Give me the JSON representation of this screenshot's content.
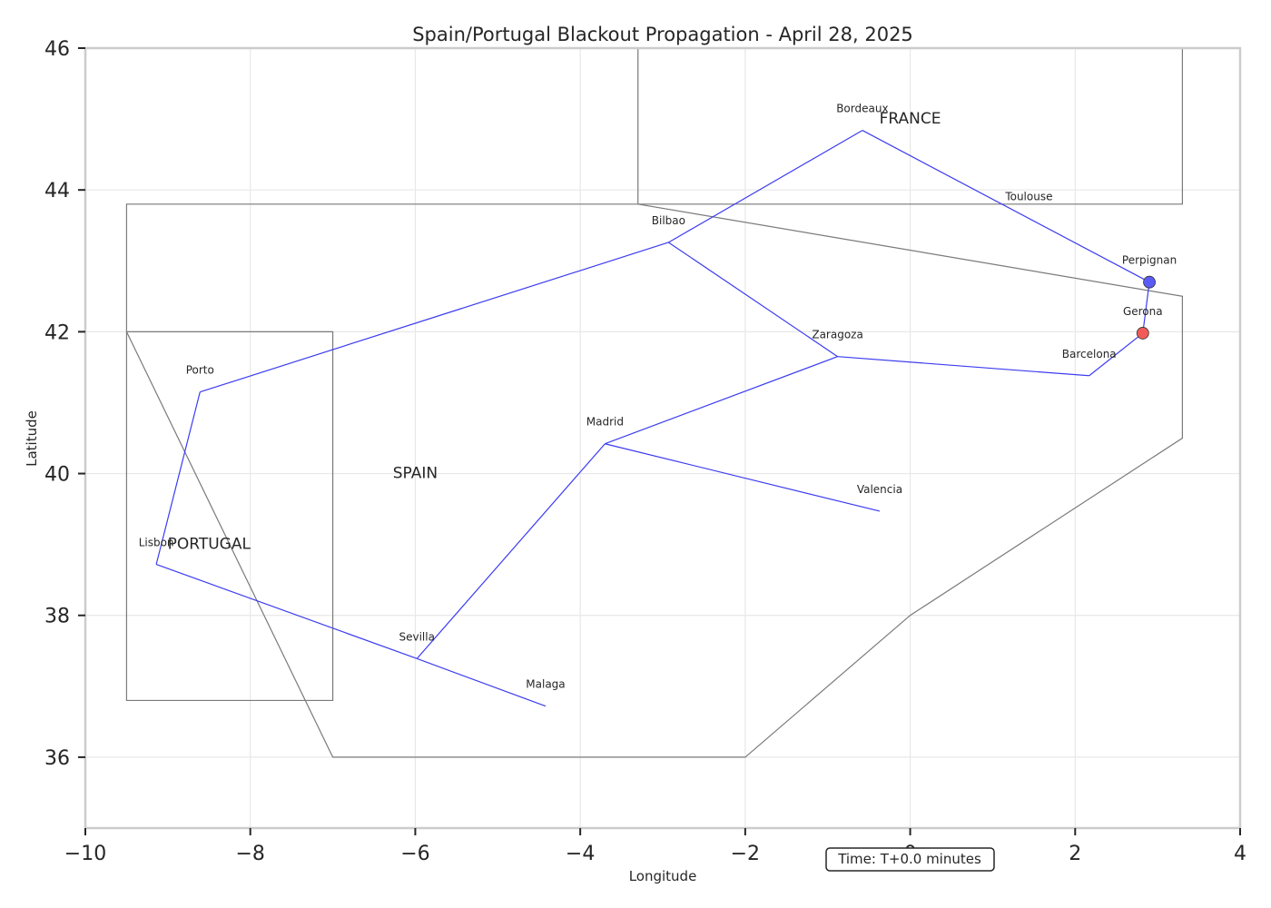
{
  "chart_data": {
    "type": "line",
    "title": "Spain/Portugal Blackout Propagation - April 28, 2025",
    "xlabel": "Longitude",
    "ylabel": "Latitude",
    "xlim": [
      -10,
      4
    ],
    "ylim": [
      35,
      46
    ],
    "xticks": [
      -10,
      -8,
      -6,
      -4,
      -2,
      0,
      2,
      4
    ],
    "yticks": [
      36,
      38,
      40,
      42,
      44,
      46
    ],
    "xtick_labels": [
      "−10",
      "−8",
      "−6",
      "−4",
      "−2",
      "0",
      "2",
      "4"
    ],
    "ytick_labels": [
      "36",
      "38",
      "40",
      "42",
      "44",
      "46"
    ],
    "grid": true,
    "time_annotation": "Time: T+0.0 minutes",
    "regions": [
      {
        "name": "FRANCE",
        "label_pos": [
          0.0,
          45.0
        ],
        "outline": [
          [
            -3.3,
            46.0
          ],
          [
            -3.3,
            43.8
          ],
          [
            3.3,
            43.8
          ],
          [
            3.3,
            46.0
          ]
        ]
      },
      {
        "name": "SPAIN",
        "label_pos": [
          -6.0,
          40.0
        ],
        "outline": [
          [
            -9.5,
            42.0
          ],
          [
            -9.5,
            43.8
          ],
          [
            -3.3,
            43.8
          ],
          [
            3.3,
            42.5
          ],
          [
            3.3,
            40.5
          ],
          [
            0.0,
            38.0
          ],
          [
            -2.0,
            36.0
          ],
          [
            -7.0,
            36.0
          ],
          [
            -9.5,
            42.0
          ]
        ]
      },
      {
        "name": "PORTUGAL",
        "label_pos": [
          -8.5,
          39.0
        ],
        "outline": [
          [
            -9.5,
            42.0
          ],
          [
            -7.0,
            42.0
          ],
          [
            -7.0,
            36.8
          ],
          [
            -9.5,
            36.8
          ],
          [
            -9.5,
            42.0
          ]
        ]
      }
    ],
    "cities": [
      {
        "name": "Madrid",
        "lon": -3.7,
        "lat": 40.42
      },
      {
        "name": "Barcelona",
        "lon": 2.17,
        "lat": 41.38
      },
      {
        "name": "Valencia",
        "lon": -0.37,
        "lat": 39.47
      },
      {
        "name": "Sevilla",
        "lon": -5.98,
        "lat": 37.39
      },
      {
        "name": "Zaragoza",
        "lon": -0.88,
        "lat": 41.65
      },
      {
        "name": "Malaga",
        "lon": -4.42,
        "lat": 36.72
      },
      {
        "name": "Bilbao",
        "lon": -2.93,
        "lat": 43.26
      },
      {
        "name": "Lisbon",
        "lon": -9.14,
        "lat": 38.72
      },
      {
        "name": "Porto",
        "lon": -8.61,
        "lat": 41.15
      },
      {
        "name": "Bordeaux",
        "lon": -0.58,
        "lat": 44.84
      },
      {
        "name": "Toulouse",
        "lon": 1.44,
        "lat": 43.6
      },
      {
        "name": "Perpignan",
        "lon": 2.9,
        "lat": 42.7
      },
      {
        "name": "Gerona",
        "lon": 2.82,
        "lat": 41.98
      }
    ],
    "connections": [
      [
        "Madrid",
        "Zaragoza"
      ],
      [
        "Madrid",
        "Valencia"
      ],
      [
        "Madrid",
        "Sevilla"
      ],
      [
        "Zaragoza",
        "Barcelona"
      ],
      [
        "Zaragoza",
        "Bilbao"
      ],
      [
        "Barcelona",
        "Gerona"
      ],
      [
        "Gerona",
        "Perpignan"
      ],
      [
        "Sevilla",
        "Malaga"
      ],
      [
        "Sevilla",
        "Lisbon"
      ],
      [
        "Lisbon",
        "Porto"
      ],
      [
        "Porto",
        "Bilbao"
      ],
      [
        "Bilbao",
        "Bordeaux"
      ],
      [
        "Bordeaux",
        "Perpignan"
      ]
    ],
    "markers": [
      {
        "city": "Perpignan",
        "status": "powered",
        "color": "#5b5bf5"
      },
      {
        "city": "Gerona",
        "status": "outage",
        "color": "#f25a5a"
      }
    ],
    "colors": {
      "line": "#3c3cf0",
      "outline": "#7a7a7a",
      "grid": "#e8e8e8",
      "axis": "#cccccc",
      "text": "#262626"
    }
  }
}
